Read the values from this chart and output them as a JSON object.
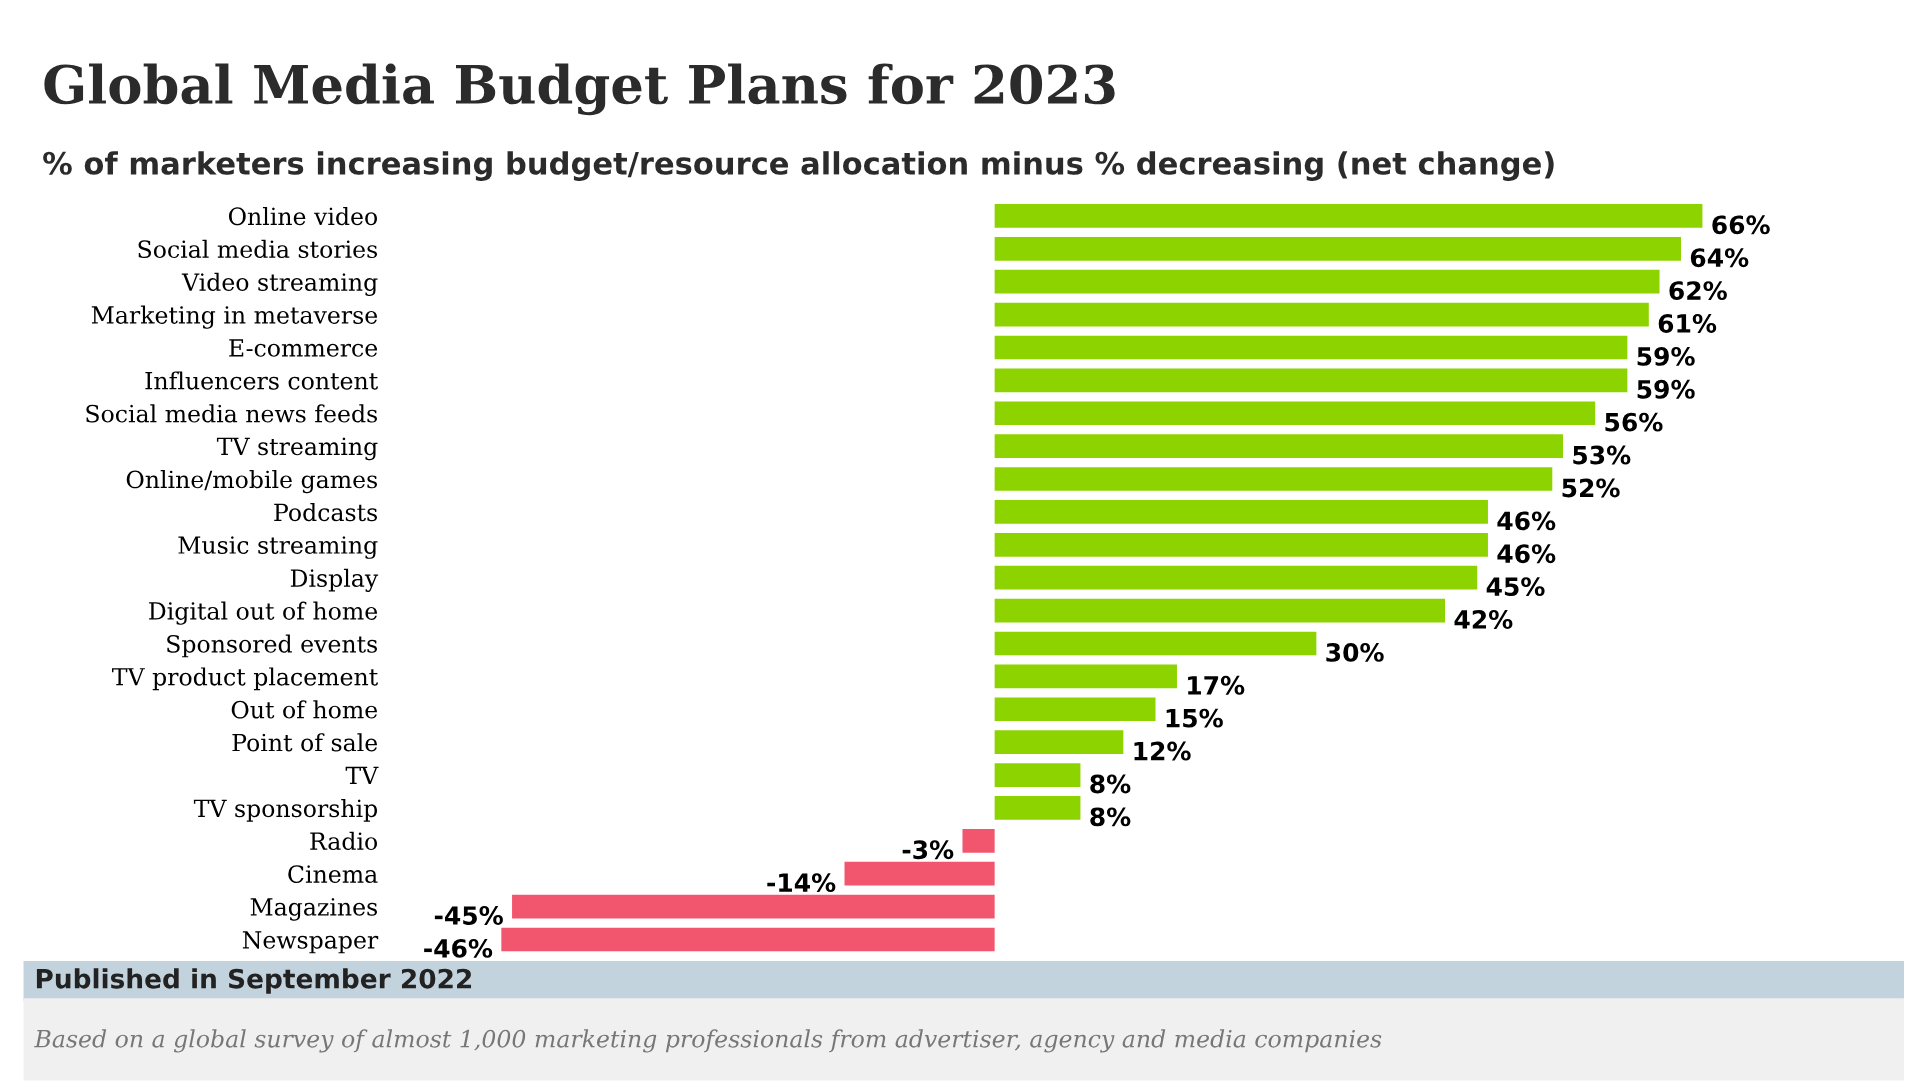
{
  "chart_data": {
    "type": "bar",
    "orientation": "horizontal",
    "title": "Global Media Budget Plans for 2023",
    "subtitle": "% of marketers increasing budget/resource allocation minus % decreasing (net change)",
    "categories": [
      "Online video",
      "Social media stories",
      "Video streaming",
      "Marketing in metaverse",
      "E-commerce",
      "Influencers content",
      "Social media news feeds",
      "TV streaming",
      "Online/mobile games",
      "Podcasts",
      "Music streaming",
      "Display",
      "Digital out of home",
      "Sponsored events",
      "TV product placement",
      "Out of home",
      "Point of sale",
      "TV",
      "TV sponsorship",
      "Radio",
      "Cinema",
      "Magazines",
      "Newspaper"
    ],
    "values": [
      66,
      64,
      62,
      61,
      59,
      59,
      56,
      53,
      52,
      46,
      46,
      45,
      42,
      30,
      17,
      15,
      12,
      8,
      8,
      -3,
      -14,
      -45,
      -46
    ],
    "colors": [
      "#8cd300",
      "#8cd300",
      "#8cd300",
      "#8cd300",
      "#8cd300",
      "#8cd300",
      "#8cd300",
      "#8cd300",
      "#8cd300",
      "#8cd300",
      "#8cd300",
      "#8cd300",
      "#8cd300",
      "#8cd300",
      "#8cd300",
      "#8cd300",
      "#8cd300",
      "#8cd300",
      "#8cd300",
      "#f2566f",
      "#f2566f",
      "#f2566f",
      "#f2566f"
    ],
    "value_labels": [
      "66%",
      "64%",
      "62%",
      "61%",
      "59%",
      "59%",
      "56%",
      "53%",
      "52%",
      "46%",
      "46%",
      "45%",
      "42%",
      "30%",
      "17%",
      "15%",
      "12%",
      "8%",
      "8%",
      "-3%",
      "-14%",
      "-45%",
      "-46%"
    ],
    "tick_labels": "y",
    "grid": false,
    "legend": false,
    "annotations": [
      "Published in September 2022",
      "Based on a global survey of almost 1,000 marketing professionals from advertiser, agency and media companies"
    ]
  }
}
